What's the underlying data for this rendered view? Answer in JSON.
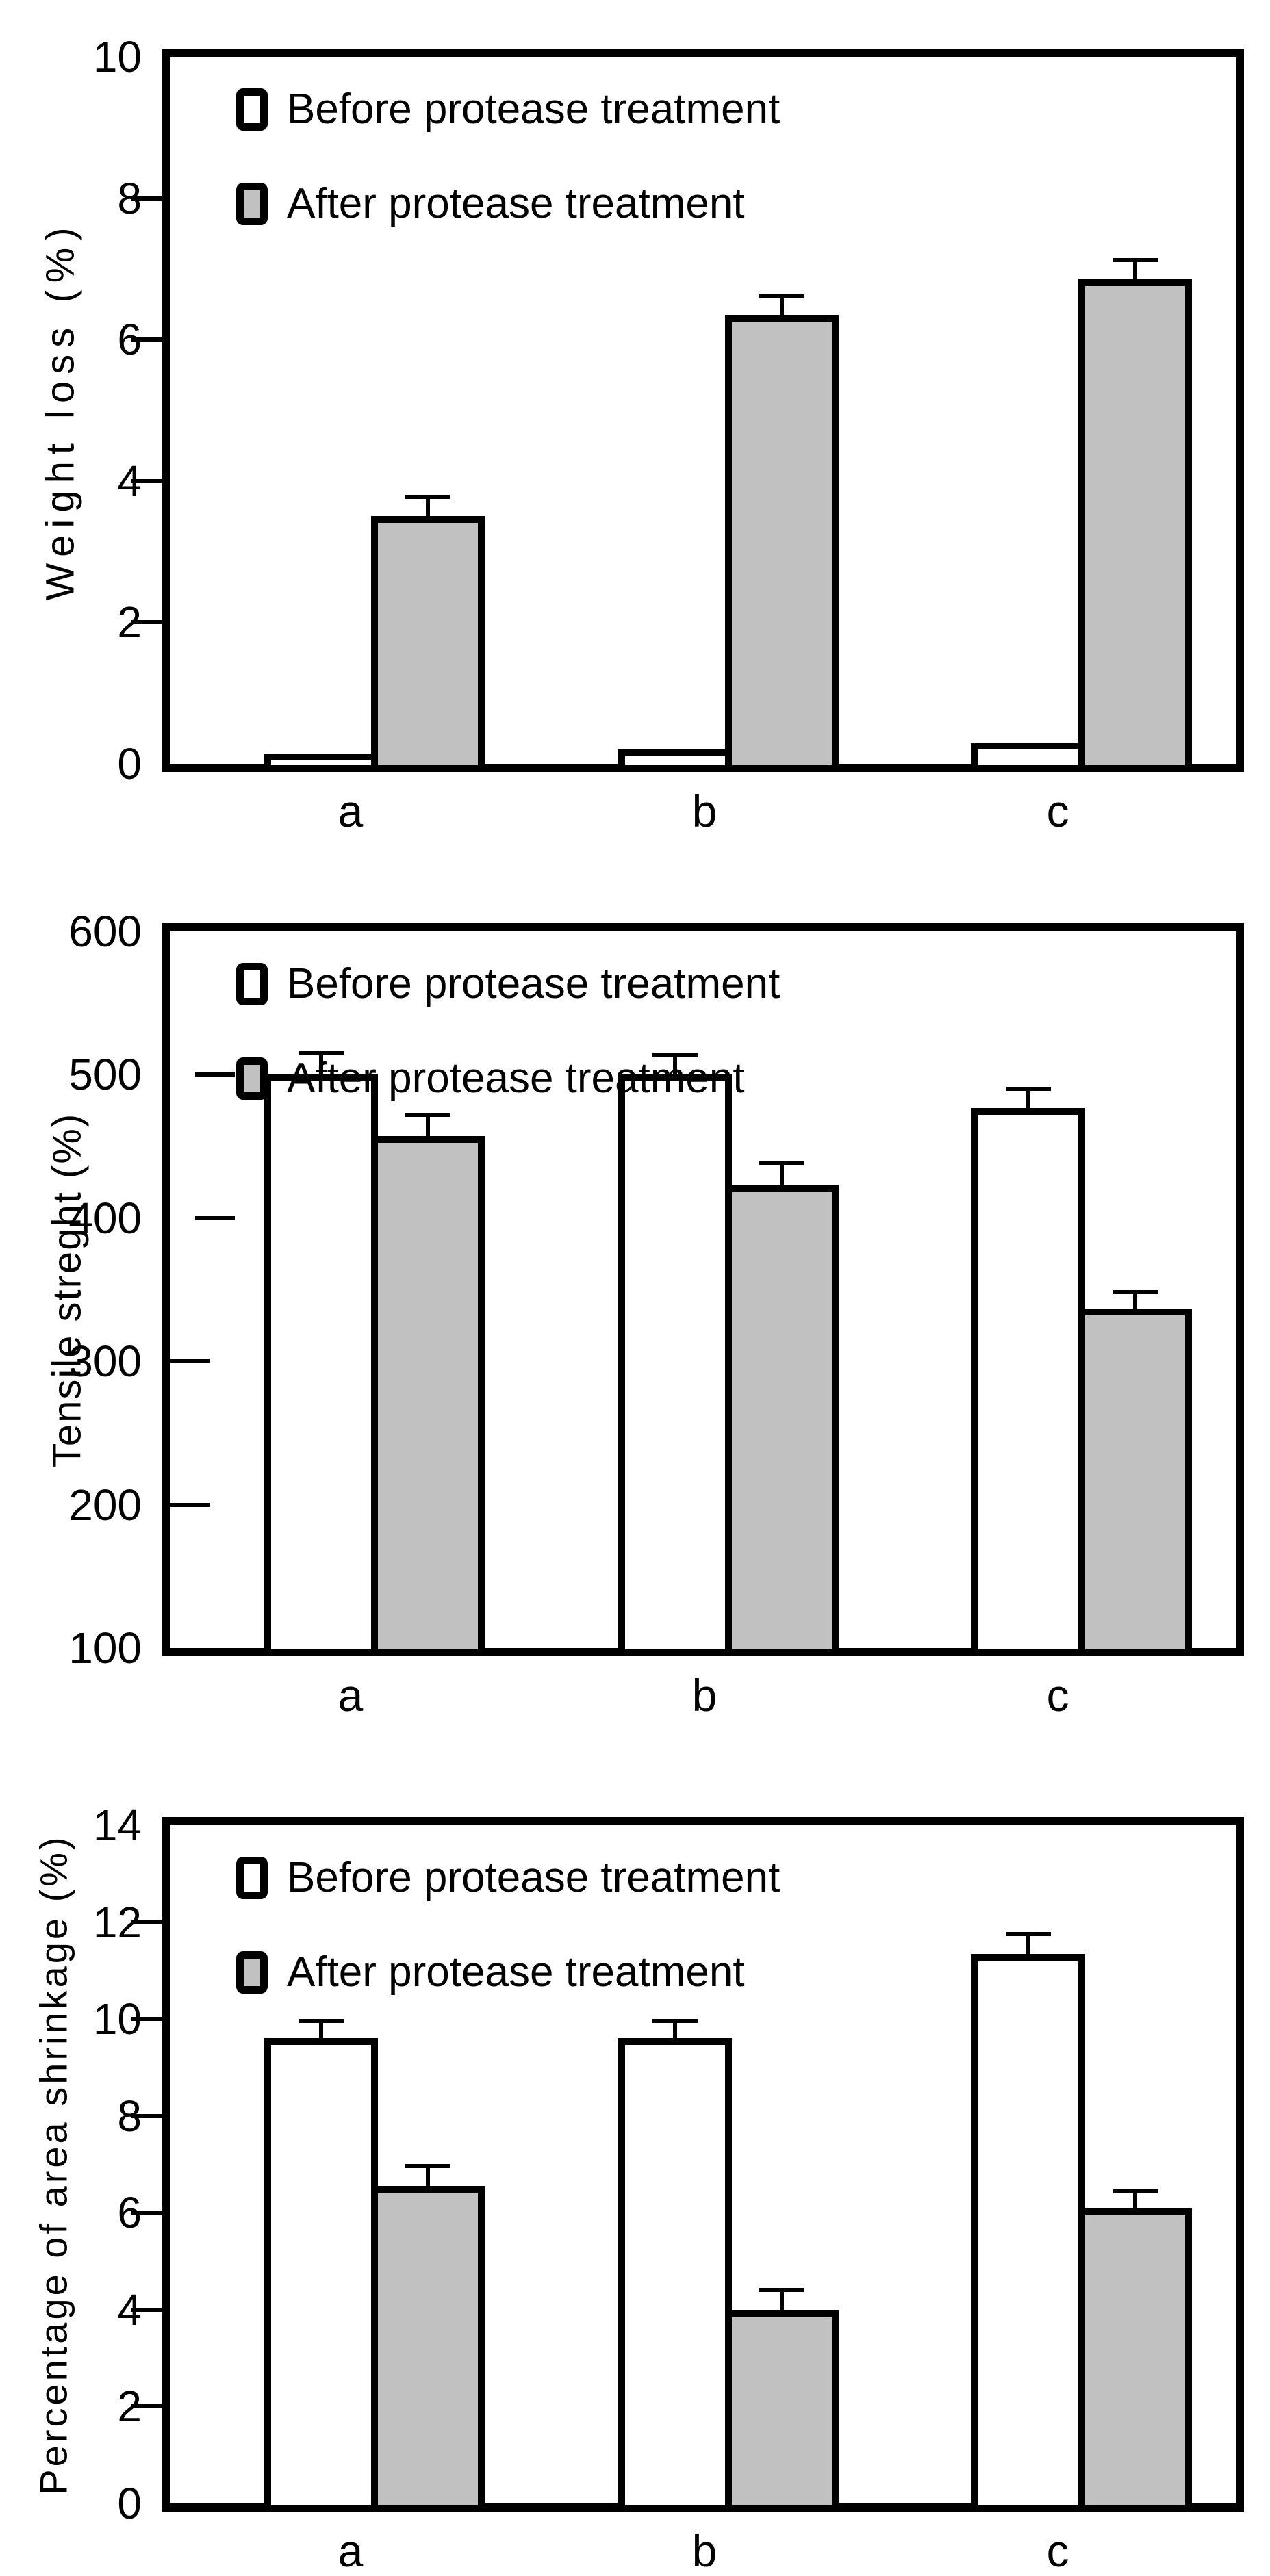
{
  "colors": {
    "before_fill": "#ffffff",
    "after_fill": "#c1c1c1",
    "ink": "#000000"
  },
  "chart_data": [
    {
      "type": "bar",
      "title": "",
      "ylabel": "Weight loss (%)",
      "xlabel": "",
      "categories": [
        "a",
        "b",
        "c"
      ],
      "series": [
        {
          "name": "Before protease treatment",
          "values": [
            0.15,
            0.2,
            0.3
          ],
          "errors": [
            0,
            0,
            0
          ]
        },
        {
          "name": "After protease treatment",
          "values": [
            3.5,
            6.35,
            6.85
          ],
          "errors": [
            0.3,
            0.3,
            0.3
          ]
        }
      ],
      "ylim": [
        0,
        10
      ],
      "yticks": [
        0,
        2,
        4,
        6,
        8,
        10
      ],
      "grid": false,
      "legend_position": "top-left"
    },
    {
      "type": "bar",
      "title": "",
      "ylabel": "Tensile streght (%)",
      "xlabel": "",
      "categories": [
        "a",
        "b",
        "c"
      ],
      "series": [
        {
          "name": "Before protease treatment",
          "values": [
            500,
            500,
            477
          ],
          "errors": [
            16,
            15,
            15
          ]
        },
        {
          "name": "After protease treatment",
          "values": [
            457,
            423,
            337
          ],
          "errors": [
            16,
            17,
            13
          ]
        }
      ],
      "ylim": [
        100,
        600
      ],
      "yticks": [
        100,
        200,
        300,
        400,
        500,
        600
      ],
      "grid": false,
      "legend_position": "top-left"
    },
    {
      "type": "bar",
      "title": "",
      "ylabel": "Percentage of area shrinkage (%)",
      "xlabel": "",
      "categories": [
        "a",
        "b",
        "c"
      ],
      "series": [
        {
          "name": "Before protease treatment",
          "values": [
            9.6,
            9.6,
            11.35
          ],
          "errors": [
            0.4,
            0.4,
            0.45
          ]
        },
        {
          "name": "After protease treatment",
          "values": [
            6.55,
            4.0,
            6.1
          ],
          "errors": [
            0.45,
            0.45,
            0.4
          ]
        }
      ],
      "ylim": [
        0,
        14
      ],
      "yticks": [
        0,
        2,
        4,
        6,
        8,
        10,
        12,
        14
      ],
      "grid": false,
      "legend_position": "top-left"
    }
  ]
}
